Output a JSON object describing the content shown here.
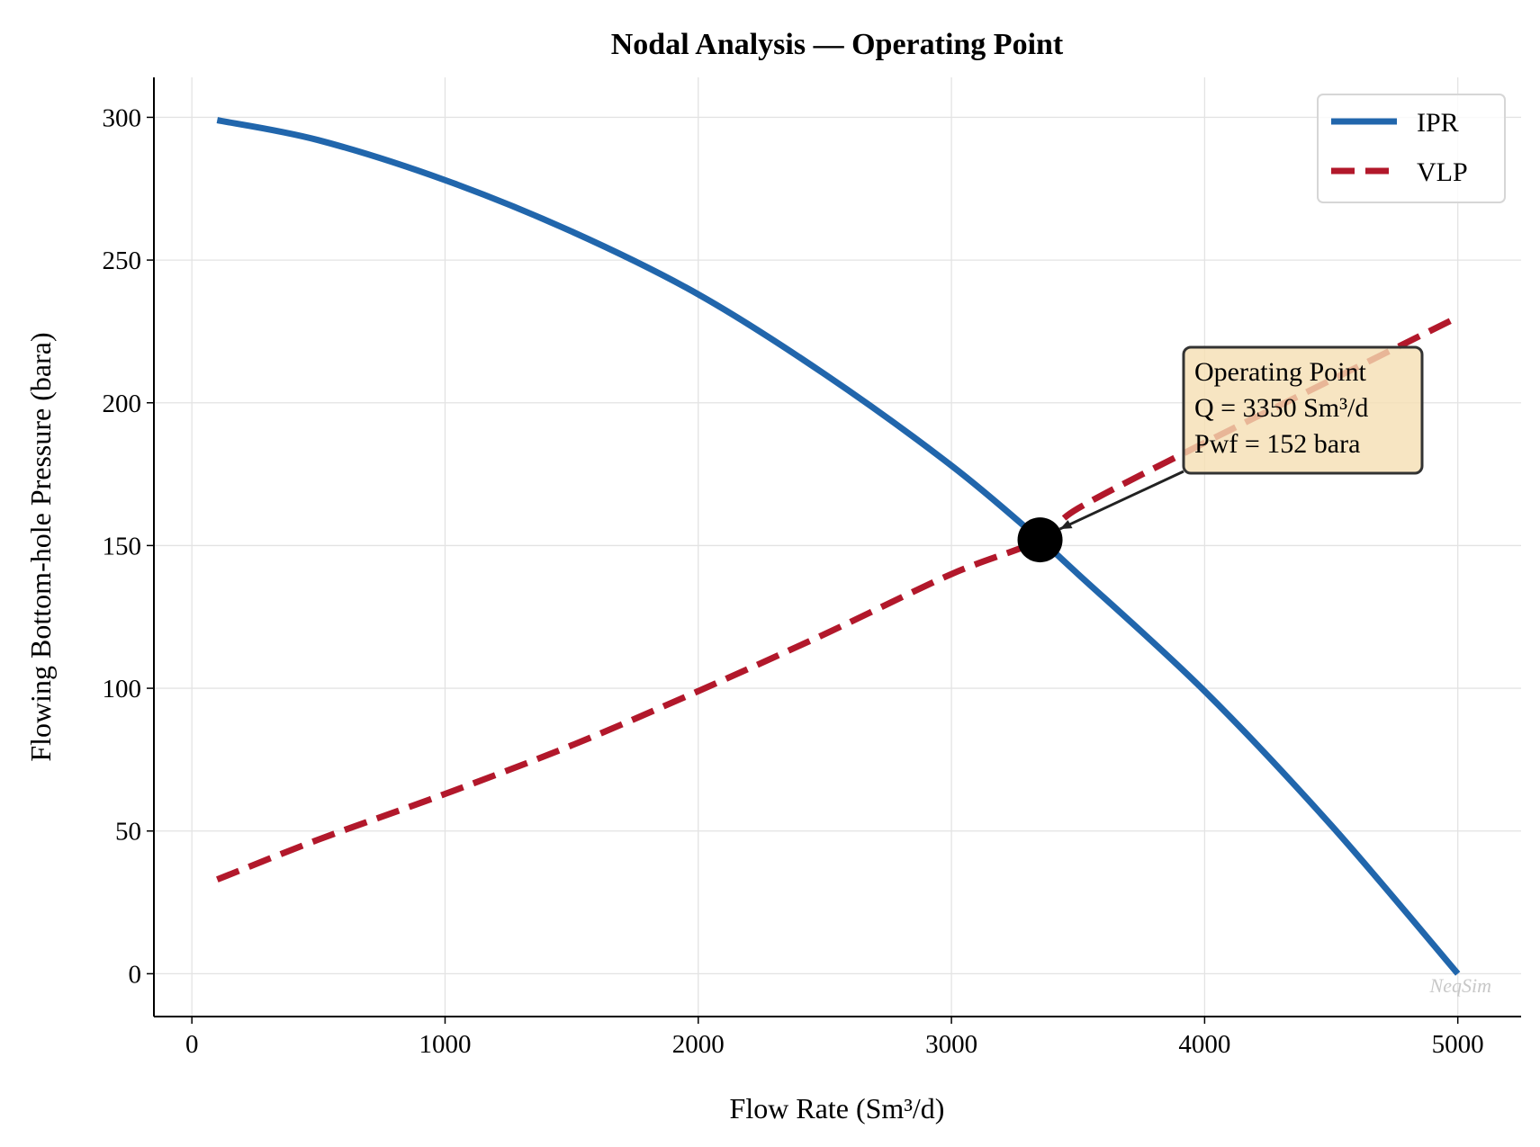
{
  "chart_data": {
    "type": "line",
    "title": "Nodal Analysis — Operating Point",
    "xlabel": "Flow Rate (Sm³/d)",
    "ylabel": "Flowing Bottom-hole Pressure (bara)",
    "xlim": [
      -150,
      5250
    ],
    "ylim": [
      -15,
      314
    ],
    "xticks": [
      0,
      1000,
      2000,
      3000,
      4000,
      5000
    ],
    "yticks": [
      0,
      50,
      100,
      150,
      200,
      250,
      300
    ],
    "grid": true,
    "legend_position": "top-right",
    "series": [
      {
        "name": "IPR",
        "color": "#2166ac",
        "style": "solid",
        "x": [
          100,
          500,
          1000,
          1500,
          2000,
          2500,
          3000,
          3350,
          3500,
          4000,
          4500,
          5000
        ],
        "y": [
          299,
          292,
          278,
          260,
          238,
          210,
          178,
          152,
          140,
          99,
          52,
          0
        ]
      },
      {
        "name": "VLP",
        "color": "#b2182b",
        "style": "dashed",
        "x": [
          100,
          500,
          1000,
          1500,
          2000,
          2500,
          3000,
          3350,
          3500,
          4000,
          4500,
          5000
        ],
        "y": [
          33,
          47,
          63,
          80,
          99,
          119,
          140,
          152,
          163,
          186,
          208,
          230
        ]
      }
    ],
    "operating_point": {
      "x": 3350,
      "y": 152,
      "annotation": [
        "Operating Point",
        "Q = 3350 Sm³/d",
        "Pwf = 152 bara"
      ],
      "box_color": "#f5deb3"
    },
    "watermark": "NeqSim"
  }
}
